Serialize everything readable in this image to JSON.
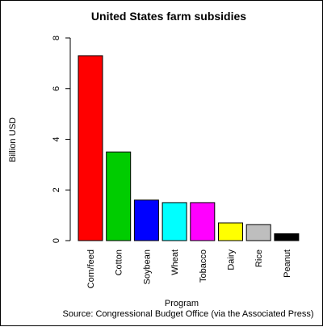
{
  "chart_data": {
    "type": "bar",
    "title": "United States farm subsidies",
    "xlabel": "Program",
    "ylabel": "Billion USD",
    "ylim": [
      0,
      8
    ],
    "yticks": [
      0,
      2,
      4,
      6,
      8
    ],
    "grid": false,
    "categories": [
      "Corn/feed",
      "Cotton",
      "Soybean",
      "Wheat",
      "Tobacco",
      "Dairy",
      "Rice",
      "Peanut"
    ],
    "values": [
      7.3,
      3.5,
      1.6,
      1.5,
      1.5,
      0.7,
      0.63,
      0.27
    ],
    "colors": [
      "#ff0000",
      "#00cc00",
      "#0000ff",
      "#00ffff",
      "#ff00ff",
      "#ffff00",
      "#bebebe",
      "#000000"
    ],
    "source": "Source:  Congressional Budget Office (via the Associated Press)"
  }
}
